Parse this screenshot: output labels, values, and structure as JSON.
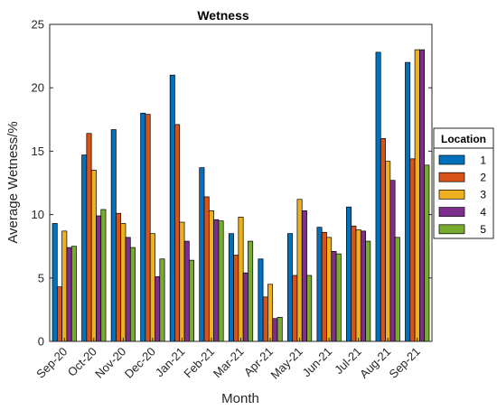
{
  "chart_data": {
    "type": "bar",
    "title": "Wetness",
    "xlabel": "Month",
    "ylabel": "Average Wetness/%",
    "ylim": [
      0,
      25
    ],
    "yticks": [
      0,
      5,
      10,
      15,
      20,
      25
    ],
    "grid": false,
    "legend_title": "Location",
    "legend_position": "right",
    "categories": [
      "Sep-20",
      "Oct-20",
      "Nov-20",
      "Dec-20",
      "Jan-21",
      "Feb-21",
      "Mar-21",
      "Apr-21",
      "May-21",
      "Jun-21",
      "Jul-21",
      "Aug-21",
      "Sep-21"
    ],
    "series": [
      {
        "name": "1",
        "color": "#0072BD",
        "values": [
          9.3,
          14.7,
          16.7,
          18.0,
          21.0,
          13.7,
          8.5,
          6.5,
          8.5,
          9.0,
          10.6,
          22.8,
          22.0
        ]
      },
      {
        "name": "2",
        "color": "#D95319",
        "values": [
          4.3,
          16.4,
          10.1,
          17.9,
          17.1,
          11.4,
          6.8,
          3.5,
          5.2,
          8.6,
          9.1,
          16.0,
          14.4
        ]
      },
      {
        "name": "3",
        "color": "#EDB120",
        "values": [
          8.7,
          13.5,
          9.3,
          8.5,
          9.4,
          10.3,
          9.8,
          4.5,
          11.2,
          8.2,
          8.8,
          14.2,
          23.0
        ]
      },
      {
        "name": "4",
        "color": "#7E2F8E",
        "values": [
          7.4,
          9.9,
          8.2,
          5.1,
          7.9,
          9.6,
          5.4,
          1.8,
          10.3,
          7.1,
          8.7,
          12.7,
          23.0
        ]
      },
      {
        "name": "5",
        "color": "#77AC30",
        "values": [
          7.5,
          10.4,
          7.4,
          6.5,
          6.4,
          9.5,
          7.9,
          1.9,
          5.2,
          6.9,
          7.9,
          8.2,
          13.9
        ]
      }
    ]
  }
}
